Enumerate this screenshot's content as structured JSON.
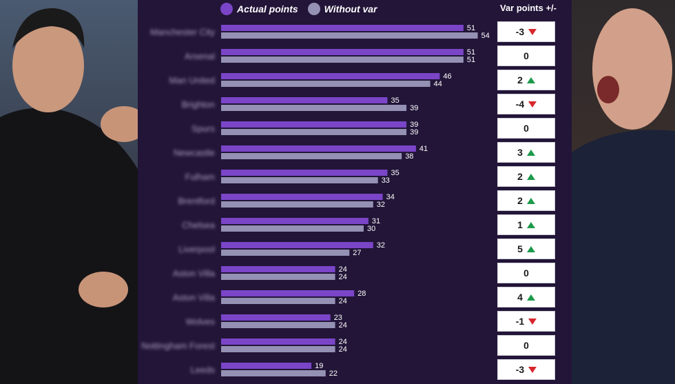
{
  "legend": {
    "actual_label": "Actual points",
    "without_label": "Without var"
  },
  "var_header": "Var points +/-",
  "colors": {
    "actual": "#7b45c8",
    "without": "#9591b4",
    "background": "#221538",
    "up": "#1d9a4a",
    "down": "#d8262c"
  },
  "chart_data": {
    "type": "bar",
    "orientation": "horizontal",
    "categories": [
      "Manchester City",
      "Arsenal",
      "Man United",
      "Brighton",
      "Spurs",
      "Newcastle",
      "Fulham",
      "Brentford",
      "Chelsea",
      "Liverpool",
      "Aston Villa",
      "Aston Villa",
      "Wolves",
      "Nottingham Forest",
      "Leeds"
    ],
    "series": [
      {
        "name": "Actual points",
        "values": [
          51,
          51,
          46,
          35,
          39,
          41,
          35,
          34,
          31,
          32,
          24,
          28,
          23,
          24,
          19
        ]
      },
      {
        "name": "Without var",
        "values": [
          54,
          51,
          44,
          39,
          39,
          38,
          33,
          32,
          30,
          27,
          24,
          24,
          24,
          24,
          22
        ]
      }
    ],
    "var_diff": [
      -3,
      0,
      2,
      -4,
      0,
      3,
      2,
      2,
      1,
      5,
      0,
      4,
      -1,
      0,
      -3
    ],
    "xlim": [
      0,
      60
    ]
  }
}
